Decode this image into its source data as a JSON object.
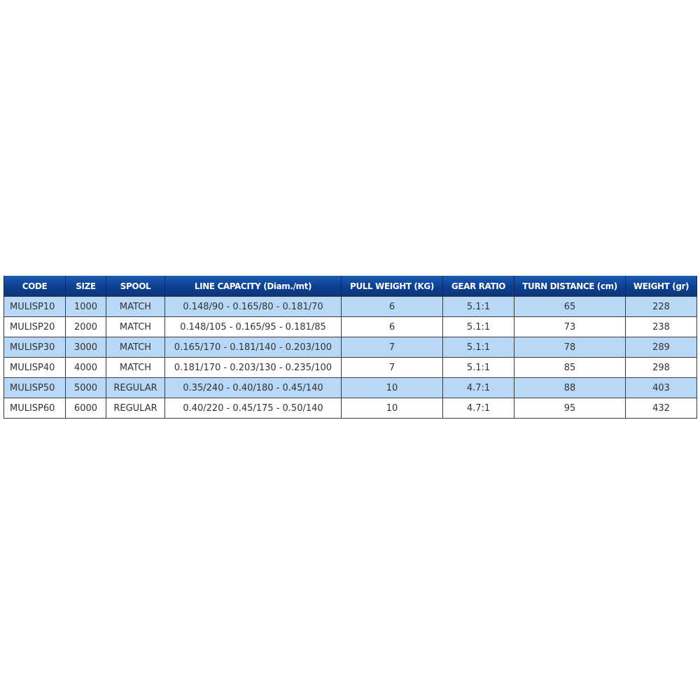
{
  "table": {
    "headers": [
      "CODE",
      "SIZE",
      "SPOOL",
      "LINE CAPACITY (Diam./mt)",
      "PULL WEIGHT (KG)",
      "GEAR RATIO",
      "TURN DISTANCE (cm)",
      "WEIGHT (gr)"
    ],
    "rows": [
      [
        "MULISP10",
        "1000",
        "MATCH",
        "0.148/90 - 0.165/80 - 0.181/70",
        "6",
        "5.1:1",
        "65",
        "228"
      ],
      [
        "MULISP20",
        "2000",
        "MATCH",
        "0.148/105 - 0.165/95 - 0.181/85",
        "6",
        "5.1:1",
        "73",
        "238"
      ],
      [
        "MULISP30",
        "3000",
        "MATCH",
        "0.165/170 - 0.181/140 - 0.203/100",
        "7",
        "5.1:1",
        "78",
        "289"
      ],
      [
        "MULISP40",
        "4000",
        "MATCH",
        "0.181/170 - 0.203/130 - 0.235/100",
        "7",
        "5.1:1",
        "85",
        "298"
      ],
      [
        "MULISP50",
        "5000",
        "REGULAR",
        "0.35/240 - 0.40/180 - 0.45/140",
        "10",
        "4.7:1",
        "88",
        "403"
      ],
      [
        "MULISP60",
        "6000",
        "REGULAR",
        "0.40/220 - 0.45/175 - 0.50/140",
        "10",
        "4.7:1",
        "95",
        "432"
      ]
    ],
    "colors": {
      "header": "#0d3f8f",
      "alt_row": "#b7d8f6"
    }
  }
}
